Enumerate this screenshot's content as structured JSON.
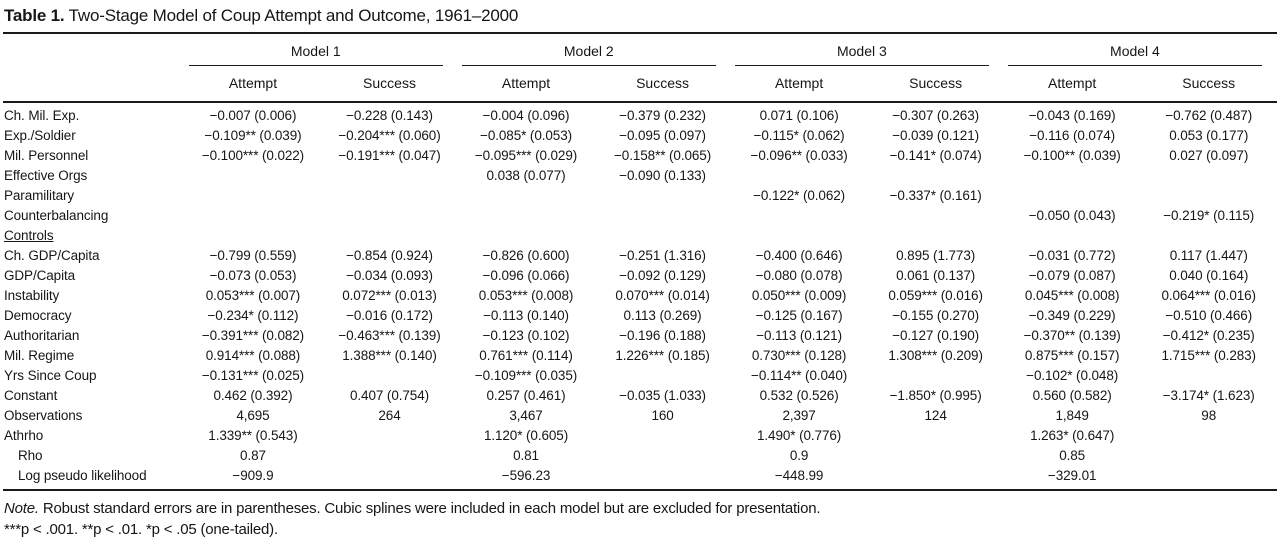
{
  "title": {
    "prefix": "Table 1.",
    "text": " Two-Stage Model of Coup Attempt and Outcome, 1961–2000"
  },
  "table": {
    "model_headers": [
      "Model 1",
      "Model 2",
      "Model 3",
      "Model 4"
    ],
    "sub_headers": [
      "Attempt",
      "Success"
    ],
    "rows": [
      {
        "label": "Ch. Mil. Exp.",
        "style": "normal",
        "cells": [
          "−0.007 (0.006)",
          "−0.228 (0.143)",
          "−0.004 (0.096)",
          "−0.379 (0.232)",
          "0.071 (0.106)",
          "−0.307 (0.263)",
          "−0.043 (0.169)",
          "−0.762 (0.487)"
        ]
      },
      {
        "label": "Exp./Soldier",
        "style": "normal",
        "cells": [
          "−0.109** (0.039)",
          "−0.204*** (0.060)",
          "−0.085* (0.053)",
          "−0.095 (0.097)",
          "−0.115* (0.062)",
          "−0.039 (0.121)",
          "−0.116 (0.074)",
          "0.053 (0.177)"
        ]
      },
      {
        "label": "Mil. Personnel",
        "style": "normal",
        "cells": [
          "−0.100*** (0.022)",
          "−0.191*** (0.047)",
          "−0.095*** (0.029)",
          "−0.158** (0.065)",
          "−0.096** (0.033)",
          "−0.141* (0.074)",
          "−0.100** (0.039)",
          "0.027 (0.097)"
        ]
      },
      {
        "label": "Effective Orgs",
        "style": "normal",
        "cells": [
          "",
          "",
          "0.038 (0.077)",
          "−0.090 (0.133)",
          "",
          "",
          "",
          ""
        ]
      },
      {
        "label": "Paramilitary",
        "style": "normal",
        "cells": [
          "",
          "",
          "",
          "",
          "−0.122* (0.062)",
          "−0.337* (0.161)",
          "",
          ""
        ]
      },
      {
        "label": "Counterbalancing",
        "style": "normal",
        "cells": [
          "",
          "",
          "",
          "",
          "",
          "",
          "−0.050 (0.043)",
          "−0.219* (0.115)"
        ]
      },
      {
        "label": "Controls",
        "style": "underline",
        "cells": [
          "",
          "",
          "",
          "",
          "",
          "",
          "",
          ""
        ]
      },
      {
        "label": "Ch. GDP/Capita",
        "style": "normal",
        "cells": [
          "−0.799 (0.559)",
          "−0.854 (0.924)",
          "−0.826 (0.600)",
          "−0.251 (1.316)",
          "−0.400 (0.646)",
          "0.895 (1.773)",
          "−0.031 (0.772)",
          "0.117 (1.447)"
        ]
      },
      {
        "label": "GDP/Capita",
        "style": "normal",
        "cells": [
          "−0.073 (0.053)",
          "−0.034 (0.093)",
          "−0.096 (0.066)",
          "−0.092 (0.129)",
          "−0.080 (0.078)",
          "0.061 (0.137)",
          "−0.079 (0.087)",
          "0.040 (0.164)"
        ]
      },
      {
        "label": "Instability",
        "style": "normal",
        "cells": [
          "0.053*** (0.007)",
          "0.072*** (0.013)",
          "0.053*** (0.008)",
          "0.070*** (0.014)",
          "0.050*** (0.009)",
          "0.059*** (0.016)",
          "0.045*** (0.008)",
          "0.064*** (0.016)"
        ]
      },
      {
        "label": "Democracy",
        "style": "normal",
        "cells": [
          "−0.234* (0.112)",
          "−0.016 (0.172)",
          "−0.113 (0.140)",
          "0.113 (0.269)",
          "−0.125 (0.167)",
          "−0.155 (0.270)",
          "−0.349 (0.229)",
          "−0.510 (0.466)"
        ]
      },
      {
        "label": "Authoritarian",
        "style": "normal",
        "cells": [
          "−0.391*** (0.082)",
          "−0.463*** (0.139)",
          "−0.123 (0.102)",
          "−0.196 (0.188)",
          "−0.113 (0.121)",
          "−0.127 (0.190)",
          "−0.370** (0.139)",
          "−0.412* (0.235)"
        ]
      },
      {
        "label": "Mil. Regime",
        "style": "normal",
        "cells": [
          "0.914*** (0.088)",
          "1.388*** (0.140)",
          "0.761*** (0.114)",
          "1.226*** (0.185)",
          "0.730*** (0.128)",
          "1.308*** (0.209)",
          "0.875*** (0.157)",
          "1.715*** (0.283)"
        ]
      },
      {
        "label": "Yrs Since Coup",
        "style": "normal",
        "cells": [
          "−0.131*** (0.025)",
          "",
          "−0.109*** (0.035)",
          "",
          "−0.114** (0.040)",
          "",
          "−0.102* (0.048)",
          ""
        ]
      },
      {
        "label": "Constant",
        "style": "normal",
        "cells": [
          "0.462 (0.392)",
          "0.407 (0.754)",
          "0.257 (0.461)",
          "−0.035 (1.033)",
          "0.532 (0.526)",
          "−1.850* (0.995)",
          "0.560 (0.582)",
          "−3.174* (1.623)"
        ]
      },
      {
        "label": "Observations",
        "style": "normal",
        "cells": [
          "4,695",
          "264",
          "3,467",
          "160",
          "2,397",
          "124",
          "1,849",
          "98"
        ]
      },
      {
        "label": "Athrho",
        "style": "normal",
        "cells": [
          "1.339** (0.543)",
          "",
          "1.120* (0.605)",
          "",
          "1.490* (0.776)",
          "",
          "1.263* (0.647)",
          ""
        ]
      },
      {
        "label": "Rho",
        "style": "indent",
        "cells": [
          "0.87",
          "",
          "0.81",
          "",
          "0.9",
          "",
          "0.85",
          ""
        ]
      },
      {
        "label": "Log pseudo likelihood",
        "style": "indent",
        "cells": [
          "−909.9",
          "",
          "−596.23",
          "",
          "−448.99",
          "",
          "−329.01",
          ""
        ]
      }
    ]
  },
  "notes": {
    "note_prefix": "Note.",
    "note_text": " Robust standard errors are in parentheses. Cubic splines were included in each model  but are excluded for presentation.",
    "significance": "***p < .001. **p < .01. *p < .05 (one-tailed)."
  },
  "colors": {
    "background": "#ffffff",
    "text": "#161616",
    "rule": "#1a1a1a"
  }
}
